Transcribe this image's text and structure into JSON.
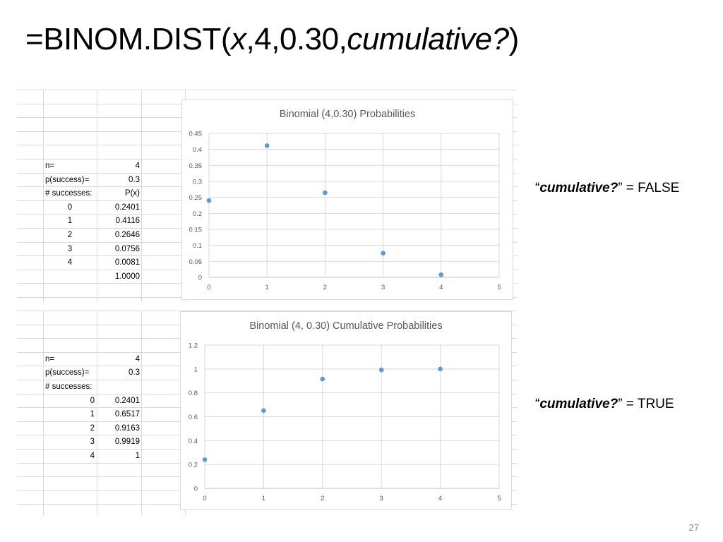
{
  "slide": {
    "title": {
      "prefix": "=BINOM.DIST(",
      "arg_x": "x",
      "middle": ",4,0.30,",
      "arg_cumulative": "cumulative?",
      "suffix": ")"
    },
    "page_number": "27"
  },
  "top_sheet": {
    "rows": [
      {
        "label": "n=",
        "value": "4"
      },
      {
        "label": "p(success)=",
        "value": "0.3"
      },
      {
        "label": "# successes:",
        "value": "P(x)"
      },
      {
        "label": "0",
        "value": "0.2401"
      },
      {
        "label": "1",
        "value": "0.4116"
      },
      {
        "label": "2",
        "value": "0.2646"
      },
      {
        "label": "3",
        "value": "0.0756"
      },
      {
        "label": "4",
        "value": "0.0081"
      },
      {
        "label": "",
        "value": "1.0000"
      }
    ]
  },
  "bottom_sheet": {
    "rows": [
      {
        "label": "n=",
        "value": "4"
      },
      {
        "label": "p(success)=",
        "value": "0.3"
      },
      {
        "label": "# successes:",
        "value": ""
      },
      {
        "label": "0",
        "value": "0.2401"
      },
      {
        "label": "1",
        "value": "0.6517"
      },
      {
        "label": "2",
        "value": "0.9163"
      },
      {
        "label": "3",
        "value": "0.9919"
      },
      {
        "label": "4",
        "value": "1"
      }
    ]
  },
  "annotations": {
    "false_label": {
      "quote_open": "“",
      "keyword": "cumulative?",
      "quote_close": "”",
      "rest": " = FALSE"
    },
    "true_label": {
      "quote_open": "“",
      "keyword": "cumulative?",
      "quote_close": "”",
      "rest": " = TRUE"
    }
  },
  "colors": {
    "marker": "#5b9bd5",
    "gridline": "#d9d9d9",
    "axis_text": "#595959"
  },
  "chart_data": [
    {
      "type": "scatter",
      "title": "Binomial (4,0.30) Probabilities",
      "xlabel": "",
      "ylabel": "",
      "x": [
        0,
        1,
        2,
        3,
        4
      ],
      "y": [
        0.2401,
        0.4116,
        0.2646,
        0.0756,
        0.0081
      ],
      "xlim": [
        0,
        5
      ],
      "ylim": [
        0,
        0.45
      ],
      "xticks": [
        "0",
        "1",
        "2",
        "3",
        "4",
        "5"
      ],
      "yticks": [
        "0",
        "0.05",
        "0.1",
        "0.15",
        "0.2",
        "0.25",
        "0.3",
        "0.35",
        "0.4",
        "0.45"
      ],
      "grid": true,
      "legend": "none"
    },
    {
      "type": "scatter",
      "title": "Binomial (4, 0.30) Cumulative Probabilities",
      "xlabel": "",
      "ylabel": "",
      "x": [
        0,
        1,
        2,
        3,
        4
      ],
      "y": [
        0.2401,
        0.6517,
        0.9163,
        0.9919,
        1
      ],
      "xlim": [
        0,
        5
      ],
      "ylim": [
        0,
        1.2
      ],
      "xticks": [
        "0",
        "1",
        "2",
        "3",
        "4",
        "5"
      ],
      "yticks": [
        "0",
        "0.2",
        "0.4",
        "0.6",
        "0.8",
        "1",
        "1.2"
      ],
      "grid": true,
      "legend": "none"
    }
  ]
}
